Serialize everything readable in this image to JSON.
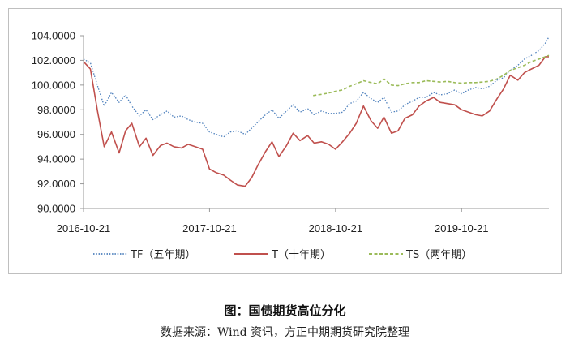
{
  "caption": {
    "title": "图：国债期货高位分化",
    "source": "数据来源：Wind 资讯，方正中期期货研究院整理"
  },
  "chart_data": {
    "type": "line",
    "title": "",
    "xlabel": "",
    "ylabel": "",
    "ylim": [
      90,
      104
    ],
    "yticks": [
      90,
      92,
      94,
      96,
      98,
      100,
      102,
      104
    ],
    "ytick_labels": [
      "90.0000",
      "92.0000",
      "94.0000",
      "96.0000",
      "98.0000",
      "100.0000",
      "102.0000",
      "104.0000"
    ],
    "xlim": [
      "2016-10-21",
      "2020-06-30"
    ],
    "xticks": [
      "2016-10-21",
      "2017-10-21",
      "2018-10-21",
      "2019-10-21"
    ],
    "grid": false,
    "legend_position": "bottom",
    "series": [
      {
        "name": "TF（五年期）",
        "color": "#4f81bd",
        "style": "dotted",
        "x": [
          "2016-10-21",
          "2016-11-10",
          "2016-12-01",
          "2016-12-20",
          "2017-01-10",
          "2017-02-01",
          "2017-02-20",
          "2017-03-10",
          "2017-04-01",
          "2017-04-20",
          "2017-05-10",
          "2017-06-01",
          "2017-06-20",
          "2017-07-10",
          "2017-08-01",
          "2017-08-20",
          "2017-09-10",
          "2017-10-01",
          "2017-10-21",
          "2017-11-10",
          "2017-12-01",
          "2017-12-20",
          "2018-01-10",
          "2018-02-01",
          "2018-02-20",
          "2018-03-10",
          "2018-04-01",
          "2018-04-20",
          "2018-05-10",
          "2018-06-01",
          "2018-06-20",
          "2018-07-10",
          "2018-08-01",
          "2018-08-20",
          "2018-09-10",
          "2018-10-01",
          "2018-10-21",
          "2018-11-10",
          "2018-12-01",
          "2018-12-20",
          "2019-01-10",
          "2019-02-01",
          "2019-02-20",
          "2019-03-10",
          "2019-04-01",
          "2019-04-20",
          "2019-05-10",
          "2019-06-01",
          "2019-06-20",
          "2019-07-10",
          "2019-08-01",
          "2019-08-20",
          "2019-09-10",
          "2019-10-01",
          "2019-10-21",
          "2019-11-10",
          "2019-12-01",
          "2019-12-20",
          "2020-01-10",
          "2020-02-01",
          "2020-02-20",
          "2020-03-10",
          "2020-04-01",
          "2020-04-20",
          "2020-05-10",
          "2020-06-01",
          "2020-06-20",
          "2020-06-30"
        ],
        "values": [
          102.1,
          101.8,
          99.9,
          98.3,
          99.4,
          98.6,
          99.2,
          98.3,
          97.5,
          98.0,
          97.2,
          97.6,
          97.9,
          97.4,
          97.5,
          97.2,
          97.0,
          96.9,
          96.2,
          96.0,
          95.8,
          96.2,
          96.3,
          96.0,
          96.5,
          97.0,
          97.6,
          98.0,
          97.3,
          97.9,
          98.4,
          97.8,
          98.1,
          97.6,
          97.9,
          97.7,
          97.7,
          97.8,
          98.5,
          98.7,
          99.4,
          98.9,
          98.6,
          99.0,
          97.8,
          97.9,
          98.4,
          98.7,
          99.0,
          99.0,
          99.4,
          99.2,
          99.3,
          99.6,
          99.3,
          99.6,
          99.8,
          99.7,
          99.9,
          100.4,
          100.6,
          101.2,
          101.6,
          102.1,
          102.4,
          102.8,
          103.4,
          103.9
        ]
      },
      {
        "name": "T（十年期）",
        "color": "#c0504d",
        "style": "solid",
        "x": [
          "2016-10-21",
          "2016-11-10",
          "2016-12-01",
          "2016-12-20",
          "2017-01-10",
          "2017-02-01",
          "2017-02-20",
          "2017-03-10",
          "2017-04-01",
          "2017-04-20",
          "2017-05-10",
          "2017-06-01",
          "2017-06-20",
          "2017-07-10",
          "2017-08-01",
          "2017-08-20",
          "2017-09-10",
          "2017-10-01",
          "2017-10-21",
          "2017-11-10",
          "2017-12-01",
          "2017-12-20",
          "2018-01-10",
          "2018-02-01",
          "2018-02-20",
          "2018-03-10",
          "2018-04-01",
          "2018-04-20",
          "2018-05-10",
          "2018-06-01",
          "2018-06-20",
          "2018-07-10",
          "2018-08-01",
          "2018-08-20",
          "2018-09-10",
          "2018-10-01",
          "2018-10-21",
          "2018-11-10",
          "2018-12-01",
          "2018-12-20",
          "2019-01-10",
          "2019-02-01",
          "2019-02-20",
          "2019-03-10",
          "2019-04-01",
          "2019-04-20",
          "2019-05-10",
          "2019-06-01",
          "2019-06-20",
          "2019-07-10",
          "2019-08-01",
          "2019-08-20",
          "2019-09-10",
          "2019-10-01",
          "2019-10-21",
          "2019-11-10",
          "2019-12-01",
          "2019-12-20",
          "2020-01-10",
          "2020-02-01",
          "2020-02-20",
          "2020-03-10",
          "2020-04-01",
          "2020-04-20",
          "2020-05-10",
          "2020-06-01",
          "2020-06-20",
          "2020-06-30"
        ],
        "values": [
          101.9,
          101.3,
          97.8,
          95.0,
          96.2,
          94.5,
          96.3,
          96.9,
          95.0,
          95.7,
          94.3,
          95.1,
          95.3,
          95.0,
          94.9,
          95.2,
          95.0,
          94.8,
          93.2,
          92.9,
          92.7,
          92.3,
          91.9,
          91.8,
          92.5,
          93.5,
          94.6,
          95.4,
          94.2,
          95.1,
          96.1,
          95.5,
          95.9,
          95.3,
          95.4,
          95.2,
          94.8,
          95.4,
          96.1,
          96.9,
          98.3,
          97.1,
          96.5,
          97.4,
          96.1,
          96.3,
          97.3,
          97.6,
          98.3,
          98.7,
          99.0,
          98.6,
          98.5,
          98.4,
          98.0,
          97.8,
          97.6,
          97.5,
          97.9,
          98.9,
          99.7,
          100.8,
          100.4,
          101.0,
          101.3,
          101.6,
          102.3,
          102.3
        ]
      },
      {
        "name": "TS（两年期）",
        "color": "#9bbb59",
        "style": "dashed",
        "x": [
          "2018-08-17",
          "2018-09-10",
          "2018-10-01",
          "2018-10-21",
          "2018-11-10",
          "2018-12-01",
          "2018-12-20",
          "2019-01-10",
          "2019-02-01",
          "2019-02-20",
          "2019-03-10",
          "2019-04-01",
          "2019-04-20",
          "2019-05-10",
          "2019-06-01",
          "2019-06-20",
          "2019-07-10",
          "2019-08-01",
          "2019-08-20",
          "2019-09-10",
          "2019-10-01",
          "2019-10-21",
          "2019-11-10",
          "2019-12-01",
          "2019-12-20",
          "2020-01-10",
          "2020-02-01",
          "2020-02-20",
          "2020-03-10",
          "2020-04-01",
          "2020-04-20",
          "2020-05-10",
          "2020-06-01",
          "2020-06-20",
          "2020-06-30"
        ],
        "values": [
          99.15,
          99.25,
          99.35,
          99.5,
          99.6,
          99.9,
          100.1,
          100.35,
          100.2,
          100.1,
          100.5,
          100.0,
          99.95,
          100.1,
          100.2,
          100.2,
          100.35,
          100.3,
          100.25,
          100.3,
          100.2,
          100.15,
          100.2,
          100.2,
          100.25,
          100.3,
          100.5,
          100.8,
          101.2,
          101.4,
          101.6,
          101.9,
          102.1,
          102.3,
          102.4
        ]
      }
    ]
  }
}
